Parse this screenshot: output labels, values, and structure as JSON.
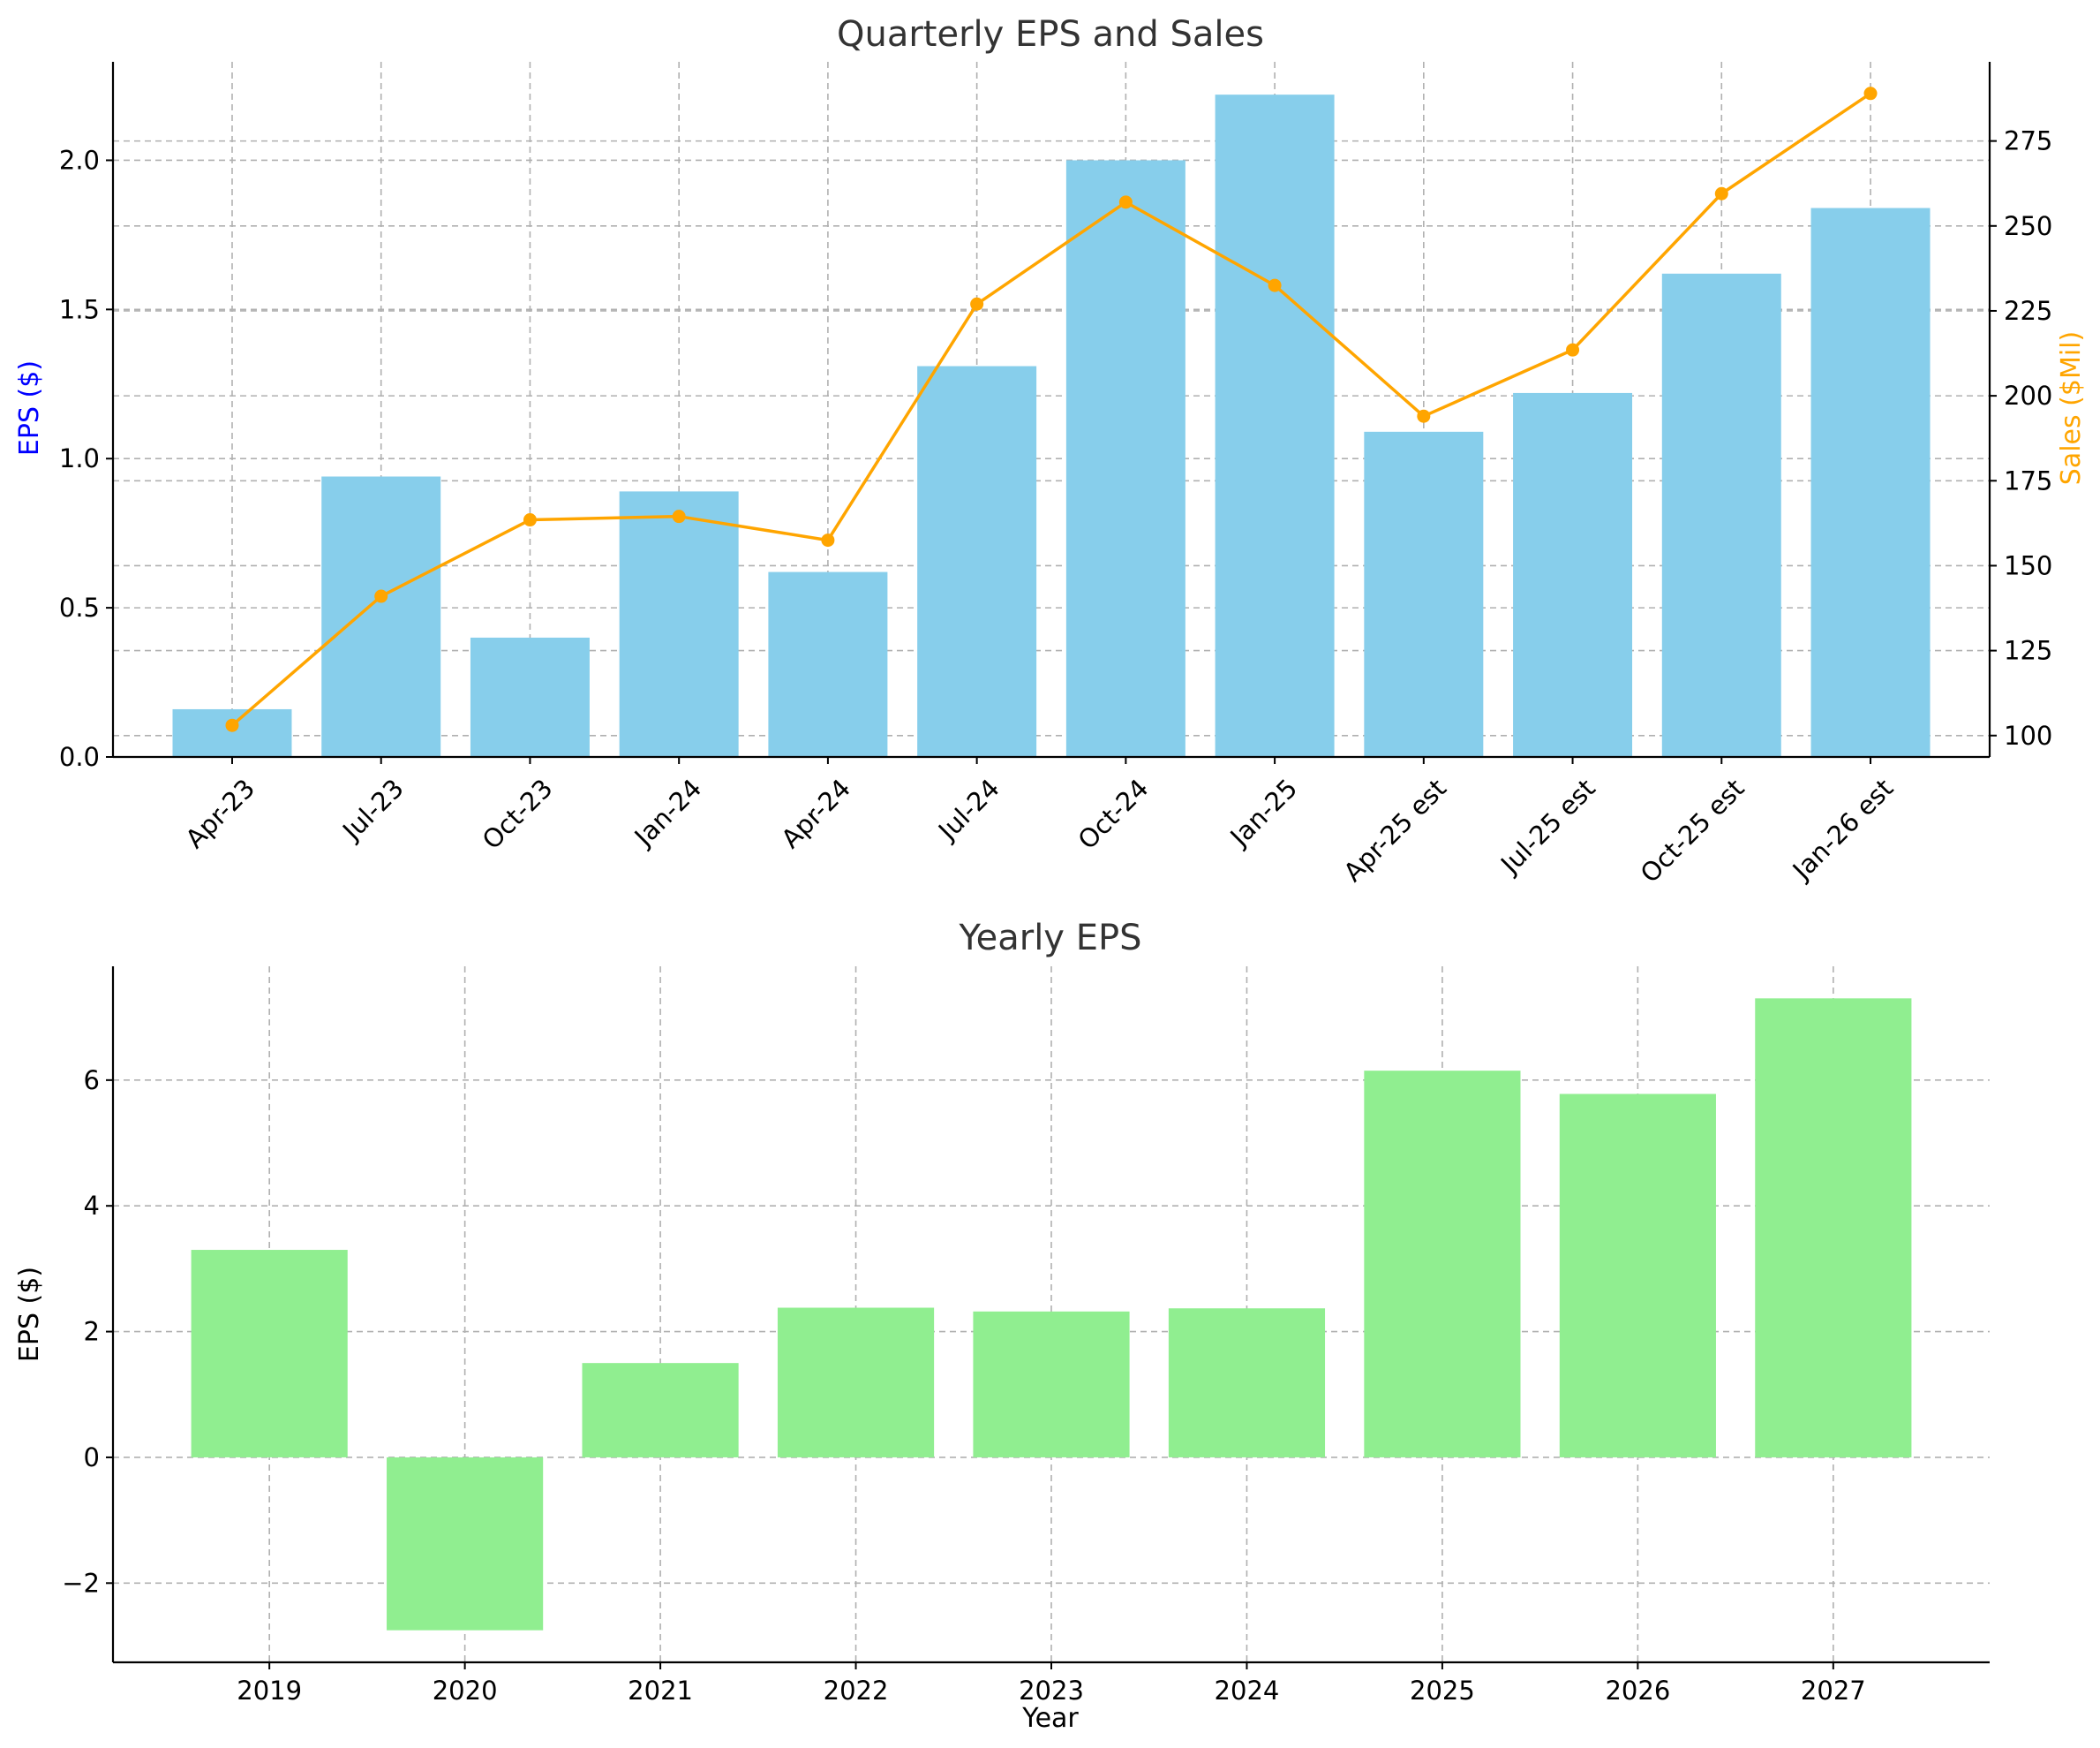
{
  "chart_data": [
    {
      "type": "bar",
      "title": "Quarterly EPS and Sales",
      "categories": [
        "Apr-23",
        "Jul-23",
        "Oct-23",
        "Jan-24",
        "Apr-24",
        "Jul-24",
        "Oct-24",
        "Jan-25",
        "Apr-25 est",
        "Jul-25 est",
        "Oct-25 est",
        "Jan-26 est"
      ],
      "series": [
        {
          "type": "bar",
          "axis": "left",
          "color": "#87CEEB",
          "values": [
            0.16,
            0.94,
            0.4,
            0.89,
            0.62,
            1.31,
            2.0,
            2.22,
            1.09,
            1.22,
            1.62,
            1.84
          ]
        },
        {
          "type": "line",
          "axis": "right",
          "color": "#FFA500",
          "marker": "circle",
          "values": [
            103,
            141,
            163.5,
            164.5,
            157.5,
            227,
            257,
            232.5,
            194,
            213.5,
            259.5,
            289
          ]
        }
      ],
      "ylabel": "EPS ($)",
      "ylabel_color": "#0000FF",
      "y2label": "Sales ($Mil)",
      "y2label_color": "#FFA500",
      "ylim": [
        0,
        2.33
      ],
      "yticks": [
        0.0,
        0.5,
        1.0,
        1.5,
        2.0
      ],
      "ytick_labels": [
        "0.0",
        "0.5",
        "1.0",
        "1.5",
        "2.0"
      ],
      "y2lim": [
        93.7,
        298.3
      ],
      "y2ticks": [
        100,
        125,
        150,
        175,
        200,
        225,
        250,
        275
      ],
      "y2tick_labels": [
        "100",
        "125",
        "150",
        "175",
        "200",
        "225",
        "250",
        "275"
      ],
      "grid": true,
      "xtick_rotation": 45
    },
    {
      "type": "bar",
      "title": "Yearly EPS",
      "categories": [
        "2019",
        "2020",
        "2021",
        "2022",
        "2023",
        "2024",
        "2025",
        "2026",
        "2027"
      ],
      "series": [
        {
          "type": "bar",
          "color": "#90EE90",
          "values": [
            3.3,
            -2.75,
            1.5,
            2.38,
            2.32,
            2.37,
            6.15,
            5.78,
            7.3
          ]
        }
      ],
      "xlabel": "Year",
      "ylabel": "EPS ($)",
      "ylim": [
        -3.26,
        7.81
      ],
      "yticks": [
        -2,
        0,
        2,
        4,
        6
      ],
      "ytick_labels": [
        "−2",
        "0",
        "2",
        "4",
        "6"
      ],
      "grid": true
    }
  ]
}
